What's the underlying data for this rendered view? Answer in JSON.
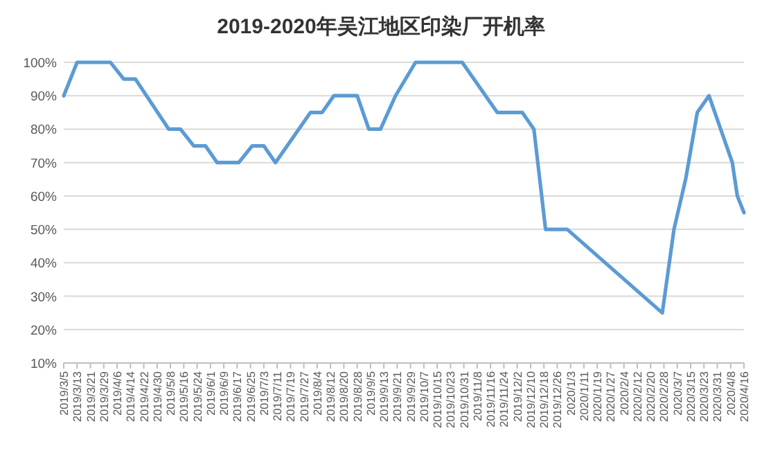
{
  "chart_data": {
    "type": "line",
    "title": "2019-2020年吴江地区印染厂开机率",
    "x": [
      "2019-03-05",
      "2019-03-13",
      "2019-04-02",
      "2019-04-10",
      "2019-04-17",
      "2019-05-07",
      "2019-05-14",
      "2019-05-22",
      "2019-05-29",
      "2019-06-05",
      "2019-06-18",
      "2019-06-26",
      "2019-07-03",
      "2019-07-10",
      "2019-07-31",
      "2019-08-07",
      "2019-08-14",
      "2019-08-28",
      "2019-09-04",
      "2019-09-11",
      "2019-09-20",
      "2019-10-02",
      "2019-10-30",
      "2019-11-20",
      "2019-12-05",
      "2019-12-12",
      "2019-12-19",
      "2020-01-01",
      "2020-02-27",
      "2020-03-05",
      "2020-03-12",
      "2020-03-19",
      "2020-03-26",
      "2020-04-09",
      "2020-04-12",
      "2020-04-16"
    ],
    "series": [
      {
        "color": "#5b9bd5",
        "values": [
          90,
          100,
          100,
          95,
          95,
          80,
          80,
          75,
          75,
          70,
          70,
          75,
          75,
          70,
          85,
          85,
          90,
          90,
          80,
          80,
          90,
          100,
          100,
          85,
          85,
          80,
          50,
          50,
          25,
          50,
          65,
          85,
          90,
          70,
          60,
          55
        ]
      }
    ],
    "xlim": [
      "2019-03-05",
      "2020-04-16"
    ],
    "xticks": [
      {
        "value": "2019-03-05",
        "label": "2019/3/5"
      },
      {
        "value": "2019-03-13",
        "label": "2019/3/13"
      },
      {
        "value": "2019-03-21",
        "label": "2019/3/21"
      },
      {
        "value": "2019-03-29",
        "label": "2019/3/29"
      },
      {
        "value": "2019-04-06",
        "label": "2019/4/6"
      },
      {
        "value": "2019-04-14",
        "label": "2019/4/14"
      },
      {
        "value": "2019-04-22",
        "label": "2019/4/22"
      },
      {
        "value": "2019-04-30",
        "label": "2019/4/30"
      },
      {
        "value": "2019-05-08",
        "label": "2019/5/8"
      },
      {
        "value": "2019-05-16",
        "label": "2019/5/16"
      },
      {
        "value": "2019-05-24",
        "label": "2019/5/24"
      },
      {
        "value": "2019-06-01",
        "label": "2019/6/1"
      },
      {
        "value": "2019-06-09",
        "label": "2019/6/9"
      },
      {
        "value": "2019-06-17",
        "label": "2019/6/17"
      },
      {
        "value": "2019-06-25",
        "label": "2019/6/25"
      },
      {
        "value": "2019-07-03",
        "label": "2019/7/3"
      },
      {
        "value": "2019-07-11",
        "label": "2019/7/11"
      },
      {
        "value": "2019-07-19",
        "label": "2019/7/19"
      },
      {
        "value": "2019-07-27",
        "label": "2019/7/27"
      },
      {
        "value": "2019-08-04",
        "label": "2019/8/4"
      },
      {
        "value": "2019-08-12",
        "label": "2019/8/12"
      },
      {
        "value": "2019-08-20",
        "label": "2019/8/20"
      },
      {
        "value": "2019-08-28",
        "label": "2019/8/28"
      },
      {
        "value": "2019-09-05",
        "label": "2019/9/5"
      },
      {
        "value": "2019-09-13",
        "label": "2019/9/13"
      },
      {
        "value": "2019-09-21",
        "label": "2019/9/21"
      },
      {
        "value": "2019-09-29",
        "label": "2019/9/29"
      },
      {
        "value": "2019-10-07",
        "label": "2019/10/7"
      },
      {
        "value": "2019-10-15",
        "label": "2019/10/15"
      },
      {
        "value": "2019-10-23",
        "label": "2019/10/23"
      },
      {
        "value": "2019-10-31",
        "label": "2019/10/31"
      },
      {
        "value": "2019-11-08",
        "label": "2019/11/8"
      },
      {
        "value": "2019-11-16",
        "label": "2019/11/16"
      },
      {
        "value": "2019-11-24",
        "label": "2019/11/24"
      },
      {
        "value": "2019-12-02",
        "label": "2019/12/2"
      },
      {
        "value": "2019-12-10",
        "label": "2019/12/10"
      },
      {
        "value": "2019-12-18",
        "label": "2019/12/18"
      },
      {
        "value": "2019-12-26",
        "label": "2019/12/26"
      },
      {
        "value": "2020-01-03",
        "label": "2020/1/3"
      },
      {
        "value": "2020-01-11",
        "label": "2020/1/11"
      },
      {
        "value": "2020-01-19",
        "label": "2020/1/19"
      },
      {
        "value": "2020-01-27",
        "label": "2020/1/27"
      },
      {
        "value": "2020-02-04",
        "label": "2020/2/4"
      },
      {
        "value": "2020-02-12",
        "label": "2020/2/12"
      },
      {
        "value": "2020-02-20",
        "label": "2020/2/20"
      },
      {
        "value": "2020-02-28",
        "label": "2020/2/28"
      },
      {
        "value": "2020-03-07",
        "label": "2020/3/7"
      },
      {
        "value": "2020-03-15",
        "label": "2020/3/15"
      },
      {
        "value": "2020-03-23",
        "label": "2020/3/23"
      },
      {
        "value": "2020-03-31",
        "label": "2020/3/31"
      },
      {
        "value": "2020-04-08",
        "label": "2020/4/8"
      },
      {
        "value": "2020-04-16",
        "label": "2020/4/16"
      }
    ],
    "ylim": [
      10,
      100
    ],
    "yticks": [
      {
        "value": 10,
        "label": "10%"
      },
      {
        "value": 20,
        "label": "20%"
      },
      {
        "value": 30,
        "label": "30%"
      },
      {
        "value": 40,
        "label": "40%"
      },
      {
        "value": 50,
        "label": "50%"
      },
      {
        "value": 60,
        "label": "60%"
      },
      {
        "value": 70,
        "label": "70%"
      },
      {
        "value": 80,
        "label": "80%"
      },
      {
        "value": 90,
        "label": "90%"
      },
      {
        "value": 100,
        "label": "100%"
      }
    ],
    "grid": "y"
  }
}
